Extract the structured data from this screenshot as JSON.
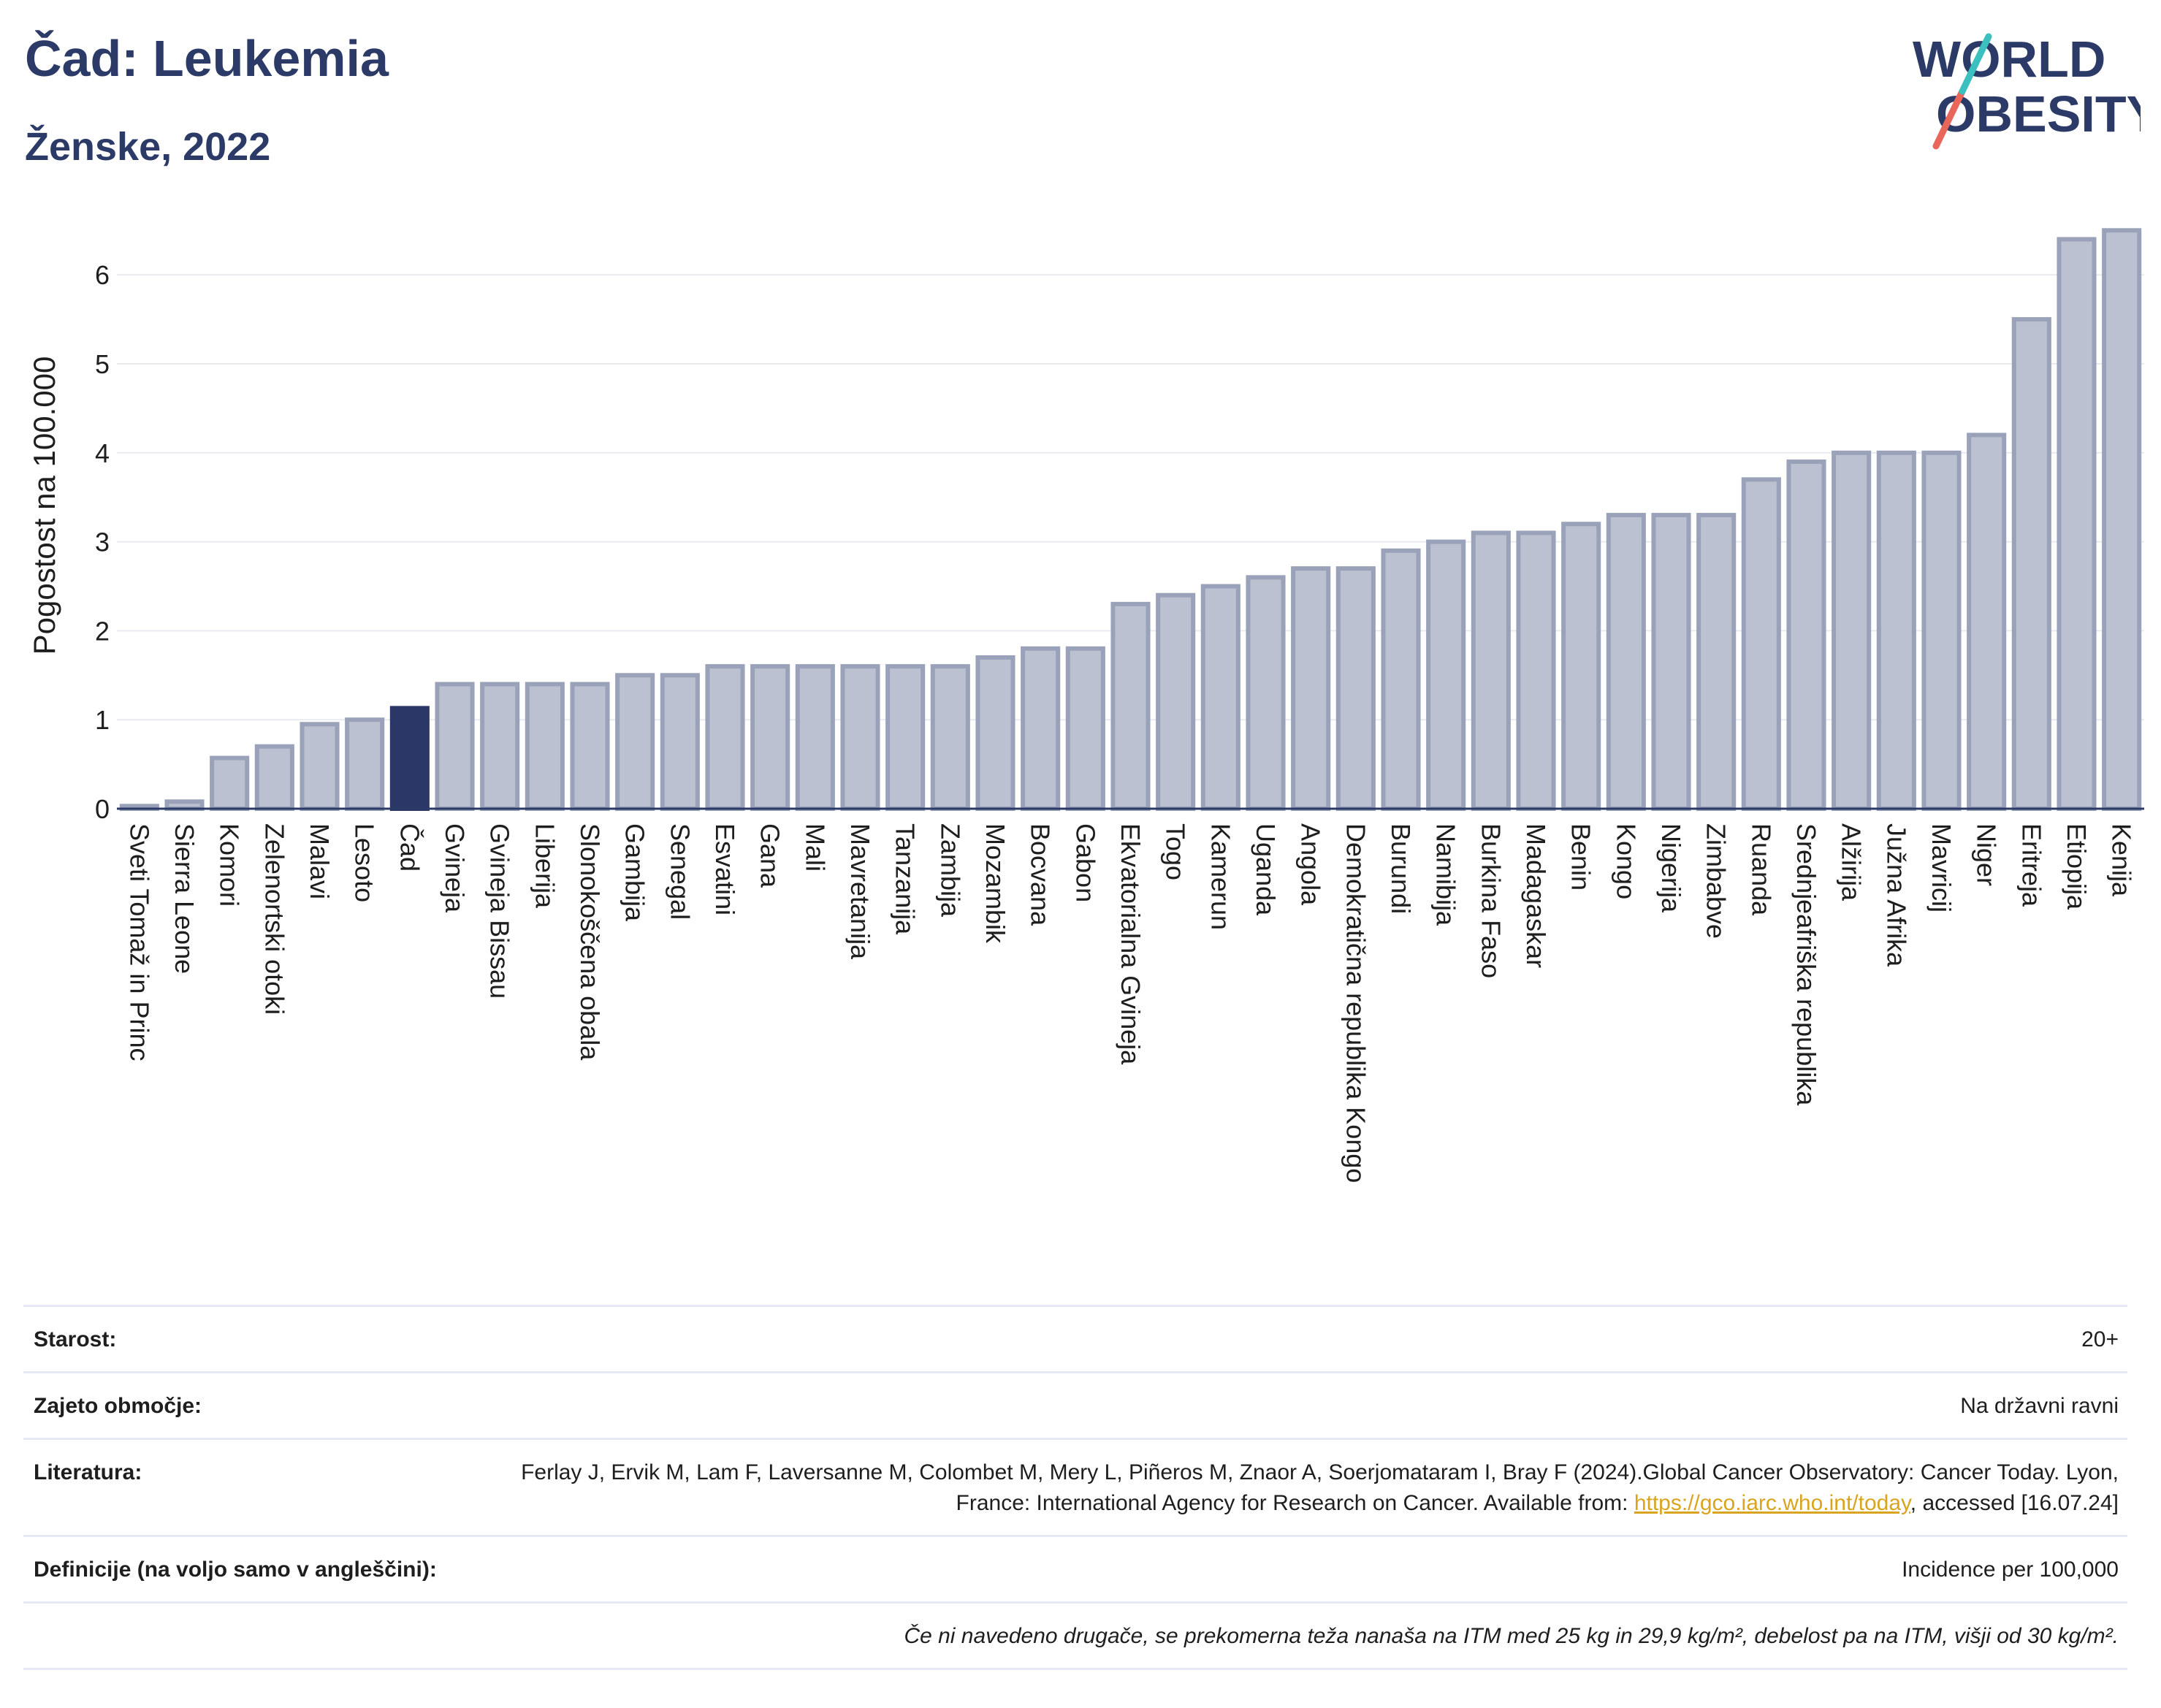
{
  "header": {
    "title": "Čad: Leukemia",
    "subtitle": "Ženske, 2022"
  },
  "logo": {
    "line1": "WORLD",
    "line2": "OBESITY"
  },
  "colors": {
    "bar": "#bcc1d1",
    "bar_stroke": "#9aa2b9",
    "highlight": "#2b3766",
    "title": "#2b3a67"
  },
  "chart_data": {
    "type": "bar",
    "ylabel": "Pogostost na 100.000",
    "ylim": [
      0,
      6.6
    ],
    "yticks": [
      0,
      1,
      2,
      3,
      4,
      5,
      6
    ],
    "grid": true,
    "highlight": "Čad",
    "categories": [
      "Sveti Tomaž in Princ",
      "Sierra Leone",
      "Komori",
      "Zelenortski otoki",
      "Malavi",
      "Lesoto",
      "Čad",
      "Gvineja",
      "Gvineja Bissau",
      "Liberija",
      "Slonokoščena obala",
      "Gambija",
      "Senegal",
      "Esvatini",
      "Gana",
      "Mali",
      "Mavretanija",
      "Tanzanija",
      "Zambija",
      "Mozambik",
      "Bocvana",
      "Gabon",
      "Ekvatorialna Gvineja",
      "Togo",
      "Kamerun",
      "Uganda",
      "Angola",
      "Demokratična republika Kongo",
      "Burundi",
      "Namibija",
      "Burkina Faso",
      "Madagaskar",
      "Benin",
      "Kongo",
      "Nigerija",
      "Zimbabve",
      "Ruanda",
      "Srednjeafriška republika",
      "Alžirija",
      "Južna Afrika",
      "Mavricij",
      "Niger",
      "Eritreja",
      "Etiopija",
      "Kenija"
    ],
    "values": [
      0.03,
      0.08,
      0.57,
      0.7,
      0.95,
      1.0,
      1.13,
      1.4,
      1.4,
      1.4,
      1.4,
      1.5,
      1.5,
      1.6,
      1.6,
      1.6,
      1.6,
      1.6,
      1.6,
      1.7,
      1.8,
      1.8,
      2.3,
      2.4,
      2.5,
      2.6,
      2.7,
      2.7,
      2.9,
      3.0,
      3.1,
      3.1,
      3.2,
      3.3,
      3.3,
      3.3,
      3.7,
      3.9,
      4.0,
      4.0,
      4.0,
      4.2,
      5.5,
      6.4,
      6.5
    ]
  },
  "info": {
    "age_label": "Starost:",
    "age_value": "20+",
    "coverage_label": "Zajeto območje:",
    "coverage_value": "Na državni ravni",
    "literature_label": "Literatura:",
    "literature_text1": "Ferlay J, Ervik M, Lam F, Laversanne M, Colombet M, Mery L, Piñeros M, Znaor A, Soerjomataram I, Bray F (2024).Global Cancer Observatory: Cancer Today. Lyon, France: International Agency for Research on Cancer. Available from: ",
    "literature_link": "https://gco.iarc.who.int/today",
    "literature_text2": ", accessed [16.07.24]",
    "definitions_label": "Definicije (na voljo samo v angleščini):",
    "definitions_value": "Incidence per 100,000",
    "footnote": "Če ni navedeno drugače, se prekomerna teža nanaša na ITM med 25 kg in 29,9 kg/m², debelost pa na ITM, višji od 30 kg/m²."
  }
}
